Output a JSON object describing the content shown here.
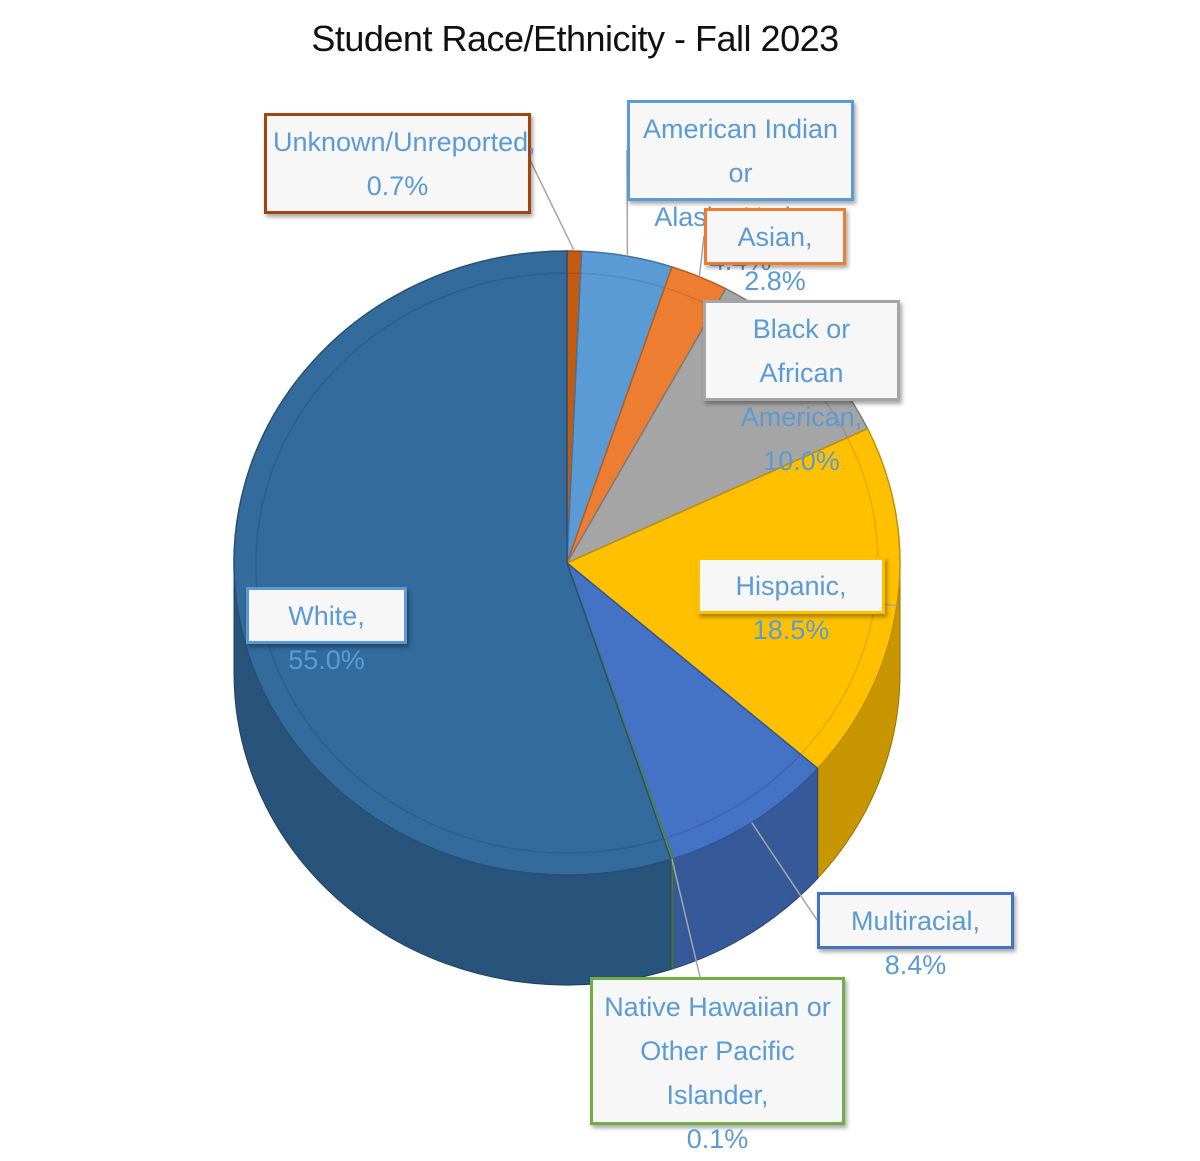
{
  "chart_data": {
    "type": "pie",
    "title": "Student Race/Ethnicity - Fall 2023",
    "slices": [
      {
        "name": "Unknown/Unreported",
        "value": 0.7,
        "label": [
          "Unknown/Unreported,",
          "0.7%"
        ],
        "color": "#c55a11",
        "border": "#a0450c"
      },
      {
        "name": "American Indian or Alaska Native",
        "value": 4.4,
        "label": [
          "American Indian or",
          "Alaska Native, 4.4%"
        ],
        "color": "#5b9bd5",
        "border": "#5b9bd5"
      },
      {
        "name": "Asian",
        "value": 2.8,
        "label": [
          "Asian, 2.8%"
        ],
        "color": "#ed7d31",
        "border": "#ed7d31"
      },
      {
        "name": "Black or African American",
        "value": 10.0,
        "label": [
          "Black or African",
          "American, 10.0%"
        ],
        "color": "#a5a5a5",
        "border": "#a5a5a5"
      },
      {
        "name": "Hispanic",
        "value": 18.5,
        "label": [
          "Hispanic, 18.5%"
        ],
        "color": "#ffc000",
        "border": "#ffc000"
      },
      {
        "name": "Multiracial",
        "value": 8.4,
        "label": [
          "Multiracial, 8.4%"
        ],
        "color": "#4472c4",
        "border": "#4472c4"
      },
      {
        "name": "Native Hawaiian or Other Pacific Islander",
        "value": 0.1,
        "label": [
          "Native Hawaiian or",
          "Other Pacific Islander,",
          "0.1%"
        ],
        "color": "#70ad47",
        "border": "#70ad47"
      },
      {
        "name": "White",
        "value": 55.0,
        "label": [
          "White, 55.0%"
        ],
        "color": "#336b9c",
        "border": "#5b9bd5"
      }
    ],
    "label_text_color": "#5b9bd5",
    "legend": "none"
  }
}
